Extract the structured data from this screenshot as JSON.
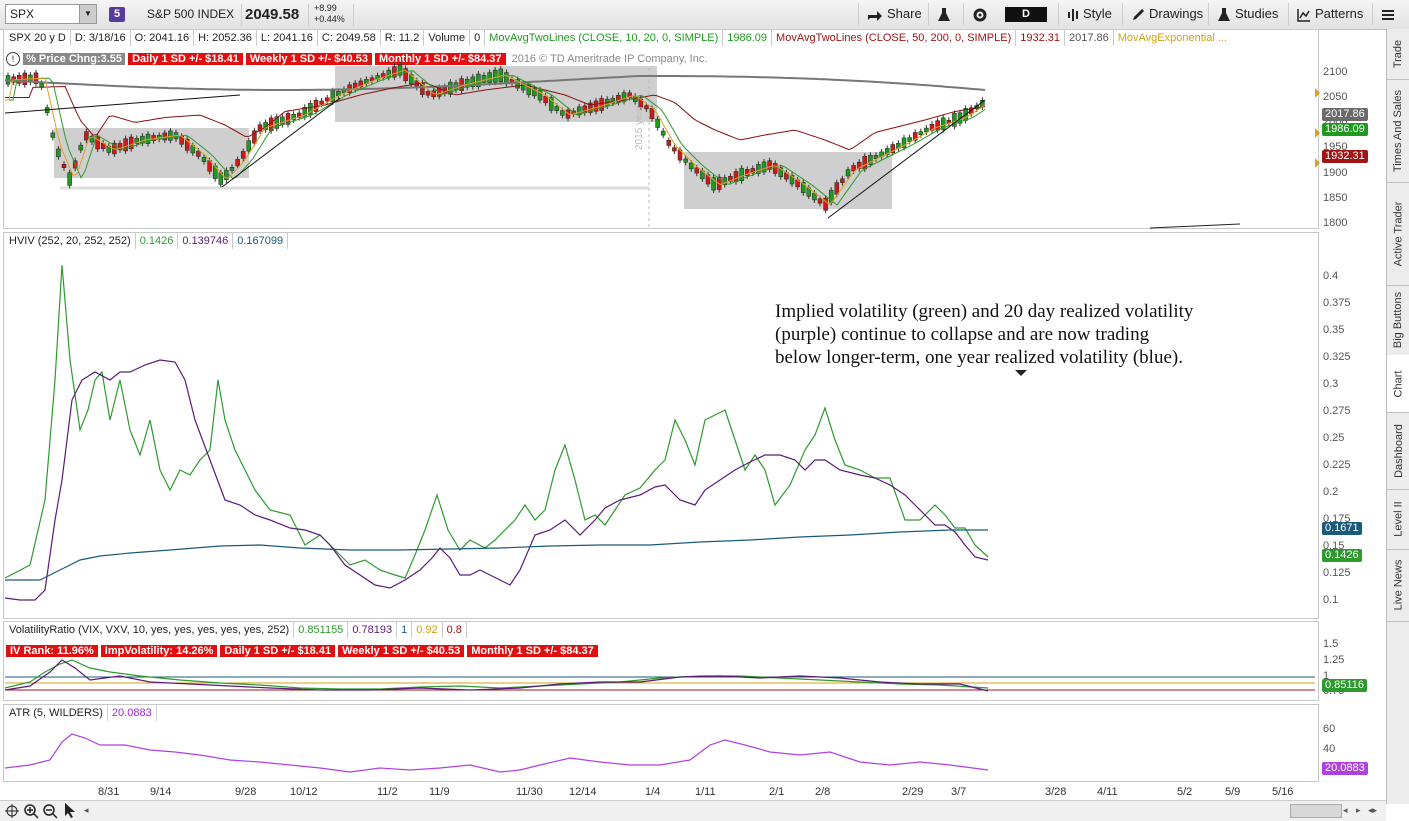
{
  "toolbar": {
    "symbol": "SPX",
    "badge": "5",
    "name": "S&P 500 INDEX",
    "price": "2049.58",
    "change": "+8.99",
    "change_pct": "+0.44%",
    "share": "Share",
    "period": "D",
    "style": "Style",
    "drawings": "Drawings",
    "studies": "Studies",
    "patterns": "Patterns"
  },
  "price_header": {
    "chart_id": "SPX 20 y D",
    "date": "D: 3/18/16",
    "open": "O: 2041.16",
    "high": "H: 2052.36",
    "low": "L: 2041.16",
    "close": "C: 2049.58",
    "range": "R: 11.2",
    "volume_label": "Volume",
    "volume": "0",
    "ma1_label": "MovAvgTwoLines (CLOSE, 10, 20, 0, SIMPLE)",
    "ma1_value": "1986.09",
    "ma2_label": "MovAvgTwoLines (CLOSE, 50, 200, 0, SIMPLE)",
    "ma2_value": "1932.31",
    "ma2_value2": "2017.86",
    "ma3_label": "MovAvgExponential ...",
    "pct_change": "% Price Chng:3.55",
    "daily_sd": "Daily 1 SD +/- $18.41",
    "weekly_sd": "Weekly 1 SD +/- $40.53",
    "monthly_sd": "Monthly 1 SD +/- $84.37",
    "copyright": "2016 © TD Ameritrade IP Company, Inc.",
    "year_marker": "2015 year",
    "y_ticks": [
      "2100",
      "2050",
      "2000",
      "1950",
      "1900",
      "1850",
      "1800"
    ],
    "price_tags": [
      {
        "text": "2017.86",
        "color": "#6a6a6a"
      },
      {
        "text": "1986.09",
        "color": "#1f9a1f"
      },
      {
        "text": "1932.31",
        "color": "#a01414"
      }
    ]
  },
  "hviv": {
    "label": "HVIV (252, 20, 252, 252)",
    "v1": "0.1426",
    "v2": "0.139746",
    "v3": "0.167099",
    "y_ticks": [
      "0.4",
      "0.375",
      "0.35",
      "0.325",
      "0.3",
      "0.275",
      "0.25",
      "0.225",
      "0.2",
      "0.175",
      "0.15",
      "0.125",
      "0.1"
    ],
    "tag_blue": "0.1671",
    "tag_green": "0.1426",
    "annotation": [
      "Implied volatility (green) and 20 day realized volatility",
      "(purple) continue to collapse and are now trading",
      "below longer-term, one year realized volatility (blue)."
    ]
  },
  "volratio": {
    "label": "VolatilityRatio (VIX, VXV, 10, yes, yes, yes, yes, yes, 252)",
    "v1": "0.851155",
    "v2": "0.78193",
    "v3": "1",
    "v4": "0.92",
    "v5": "0.8",
    "iv_rank": "IV Rank: 11.96%",
    "imp_vol": "ImpVolatility: 14.26%",
    "daily_sd": "Daily 1 SD +/- $18.41",
    "weekly_sd": "Weekly 1 SD +/- $40.53",
    "monthly_sd": "Monthly 1 SD +/- $84.37",
    "y_ticks": [
      "1.5",
      "1.25",
      "1",
      "0.75"
    ],
    "tag": "0.85116"
  },
  "atr": {
    "label": "ATR (5, WILDERS)",
    "value": "20.0883",
    "y_ticks": [
      "60",
      "40"
    ],
    "tag": "20.0883"
  },
  "x_axis": [
    "8/31",
    "9/14",
    "9/28",
    "10/12",
    "11/2",
    "11/9",
    "11/30",
    "12/14",
    "1/4",
    "1/11",
    "2/1",
    "2/8",
    "2/29",
    "3/7",
    "3/28",
    "4/11",
    "5/2",
    "5/9",
    "5/16"
  ],
  "side_tabs": [
    "Trade",
    "Times And Sales",
    "Active Trader",
    "Big Buttons",
    "Chart",
    "Dashboard",
    "Level II",
    "Live News"
  ],
  "colors": {
    "green": "#2e9a2e",
    "purple": "#5a1a7a",
    "blue": "#1a5a7a",
    "red": "#e01010",
    "maroon": "#a01414",
    "gold": "#e0a020"
  }
}
